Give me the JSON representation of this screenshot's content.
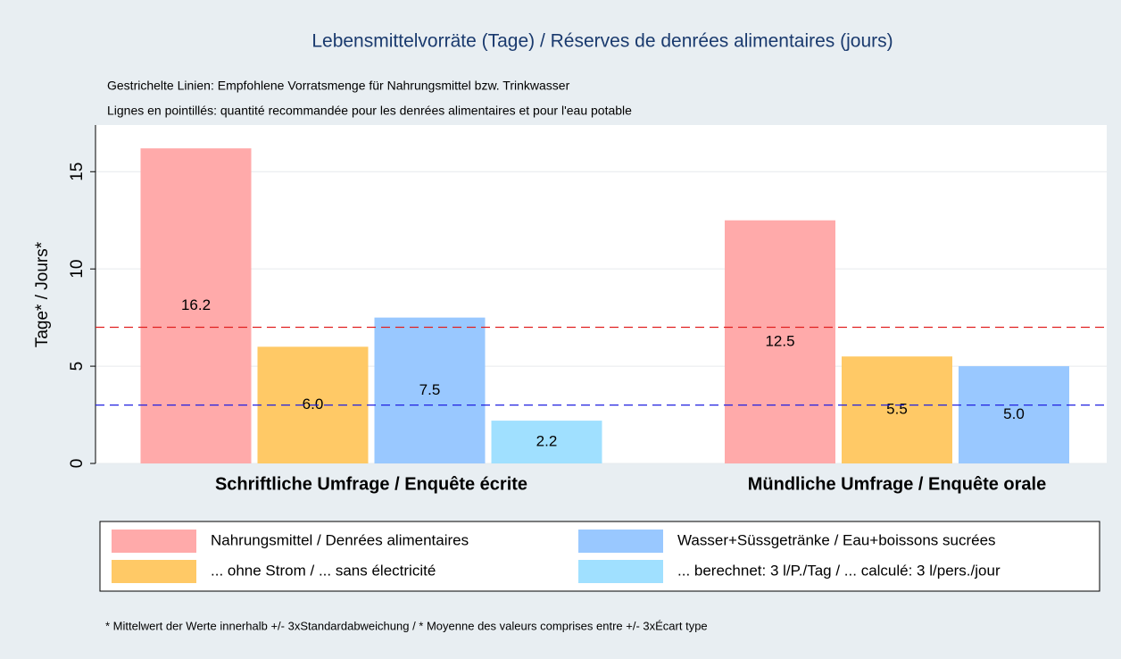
{
  "chart_data": {
    "type": "bar",
    "title": "Lebensmittelvorräte (Tage)  /  Réserves de denrées alimentaires (jours)",
    "subtitles": [
      "Gestrichelte Linien: Empfohlene Vorratsmenge für Nahrungsmittel bzw. Trinkwasser",
      "Lignes en pointillés: quantité recommandée pour les denrées alimentaires et pour l'eau potable"
    ],
    "y_label": "Tage*  /  Jours*",
    "footnote": "* Mittelwert der Werte innerhalb +/- 3xStandardabweichung  /  * Moyenne des valeurs comprises entre +/- 3xÉcart type",
    "categories": [
      "Schriftliche Umfrage  /  Enquête écrite",
      "Mündliche Umfrage  /  Enquête orale"
    ],
    "series": [
      {
        "name": "Nahrungsmittel  /  Denrées alimentaires",
        "color": "#ffaaaa",
        "values": [
          16.2,
          12.5
        ],
        "value_labels": [
          "16.2",
          "12.5"
        ]
      },
      {
        "name": "... ohne Strom   /  ... sans électricité",
        "color": "#ffc966",
        "values": [
          6.0,
          5.5
        ],
        "value_labels": [
          "6.0",
          "5.5"
        ]
      },
      {
        "name": "Wasser+Süssgetränke  /  Eau+boissons sucrées",
        "color": "#99c8ff",
        "values": [
          7.5,
          5.0
        ],
        "value_labels": [
          "7.5",
          "5.0"
        ]
      },
      {
        "name": "... berechnet: 3 l/P./Tag  /  ... calculé: 3 l/pers./jour",
        "color": "#a0e0ff",
        "values": [
          2.2,
          null
        ],
        "value_labels": [
          "2.2",
          null
        ]
      }
    ],
    "reference_lines": [
      {
        "value": 7,
        "color": "#e02020"
      },
      {
        "value": 3,
        "color": "#2020e0"
      }
    ],
    "ylim": [
      0,
      17.4
    ],
    "yticks": [
      0,
      5,
      10,
      15
    ],
    "grid": true
  }
}
